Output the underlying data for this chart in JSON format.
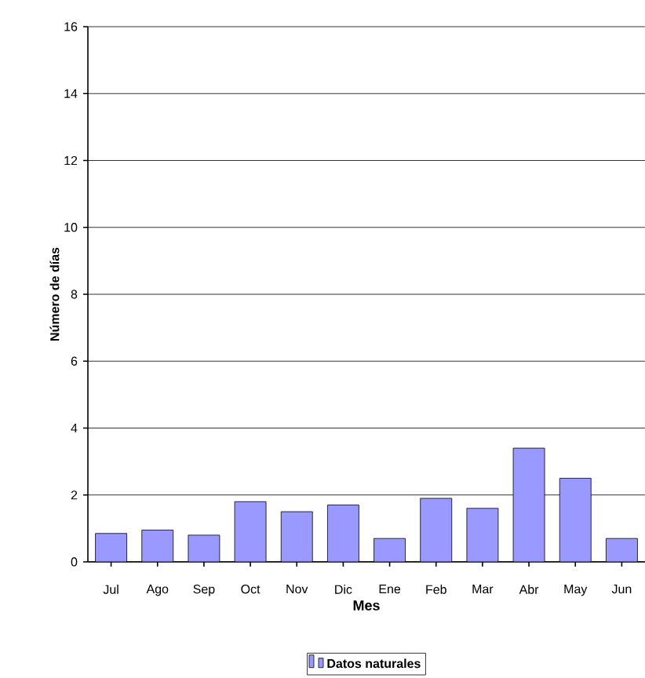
{
  "chart_data": {
    "type": "bar",
    "xlabel": "Mes",
    "ylabel": "Número de días",
    "categories": [
      "Jul",
      "Ago",
      "Sep",
      "Oct",
      "Nov",
      "Dic",
      "Ene",
      "Feb",
      "Mar",
      "Abr",
      "May",
      "Jun"
    ],
    "series": [
      {
        "name": "Datos naturales",
        "color": "#9999ff",
        "values": [
          0.85,
          0.95,
          0.8,
          1.8,
          1.5,
          1.7,
          0.7,
          1.9,
          1.6,
          3.4,
          2.5,
          0.7
        ]
      }
    ],
    "ylim": [
      0,
      16
    ],
    "yticks": [
      0,
      2,
      4,
      6,
      8,
      10,
      12,
      14,
      16
    ],
    "grid": "y",
    "legend": "bottom"
  }
}
